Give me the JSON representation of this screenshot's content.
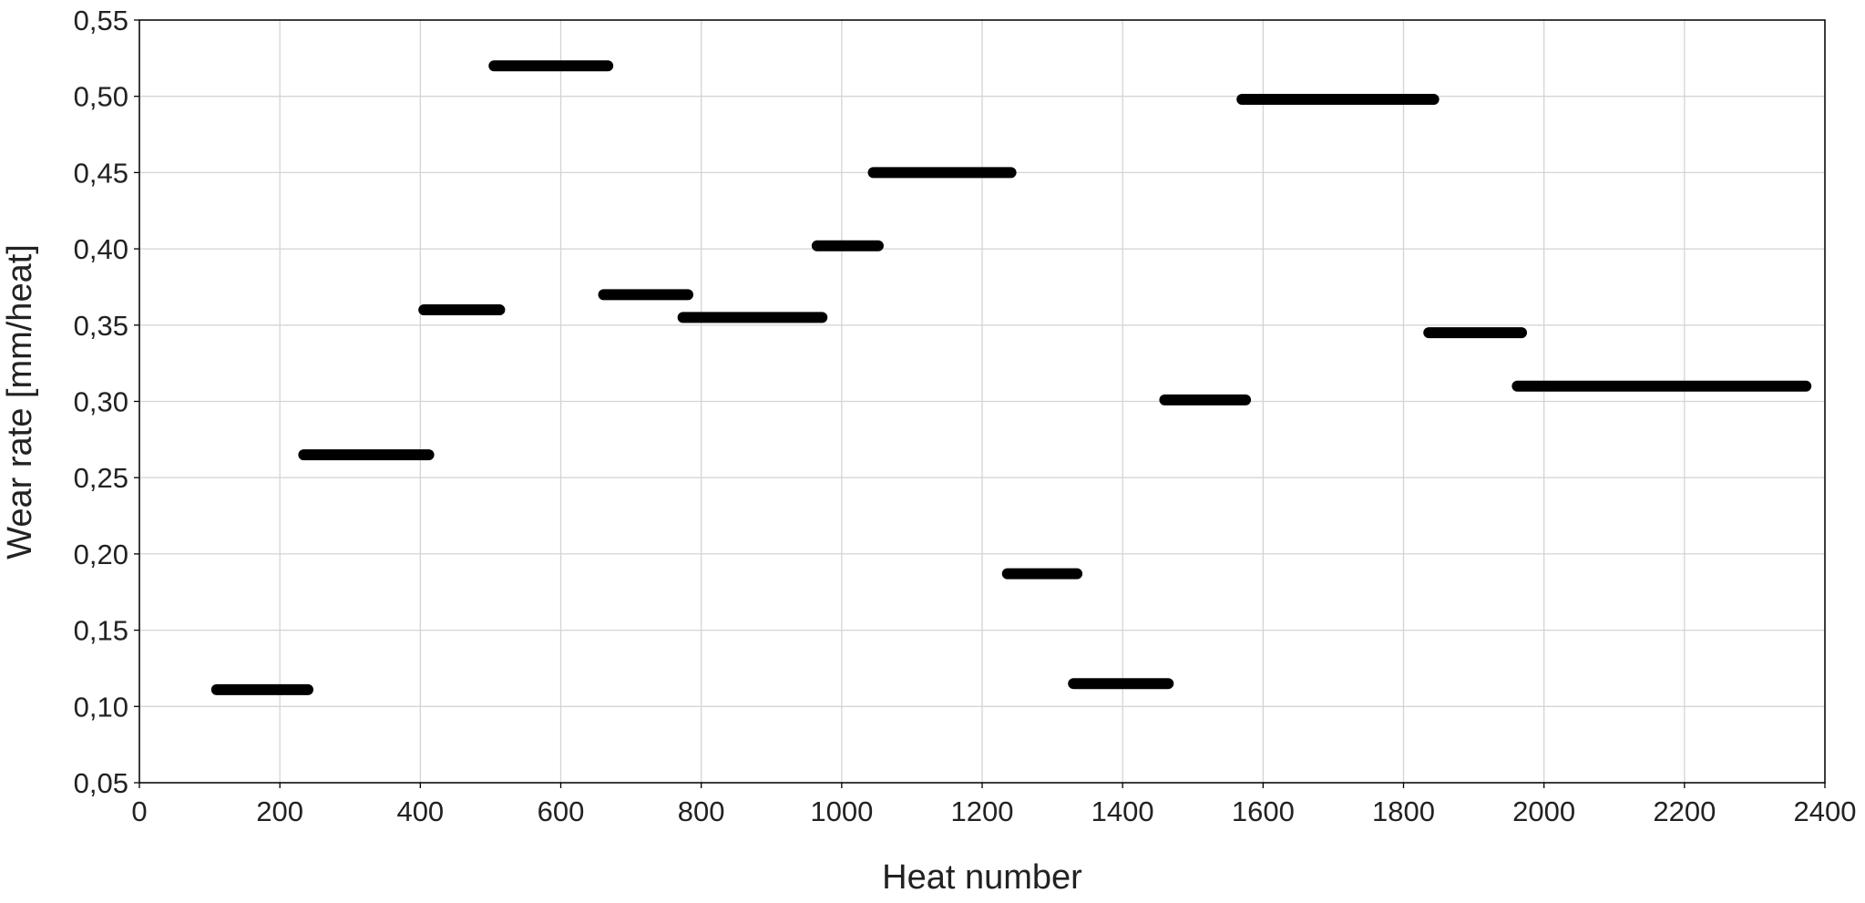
{
  "chart_data": {
    "type": "segment",
    "x_label": "Heat number",
    "y_label": "Wear rate [mm/heat]",
    "x_start": [
      110,
      234,
      405,
      505,
      661,
      774,
      965,
      1045,
      1236,
      1330,
      1460,
      1570,
      1836,
      1962
    ],
    "x_end": [
      240,
      412,
      513,
      667,
      781,
      972,
      1052,
      1241,
      1335,
      1465,
      1575,
      1843,
      1968,
      2373
    ],
    "values": [
      0.111,
      0.265,
      0.36,
      0.52,
      0.37,
      0.355,
      0.402,
      0.45,
      0.187,
      0.115,
      0.301,
      0.498,
      0.345,
      0.31
    ],
    "color": "#000000",
    "xlim": [
      0,
      2400
    ],
    "xticks": [
      0,
      200,
      400,
      600,
      800,
      1000,
      1200,
      1400,
      1600,
      1800,
      2000,
      2200,
      2400
    ],
    "ylim": [
      0.05,
      0.55
    ],
    "yticks": [
      {
        "value": 0.05,
        "label": "0,05"
      },
      {
        "value": 0.1,
        "label": "0,10"
      },
      {
        "value": 0.15,
        "label": "0,15"
      },
      {
        "value": 0.2,
        "label": "0,20"
      },
      {
        "value": 0.25,
        "label": "0,25"
      },
      {
        "value": 0.3,
        "label": "0,30"
      },
      {
        "value": 0.35,
        "label": "0,35"
      },
      {
        "value": 0.4,
        "label": "0,40"
      },
      {
        "value": 0.45,
        "label": "0,45"
      },
      {
        "value": 0.5,
        "label": "0,50"
      },
      {
        "value": 0.55,
        "label": "0,55"
      }
    ],
    "grid": true
  }
}
